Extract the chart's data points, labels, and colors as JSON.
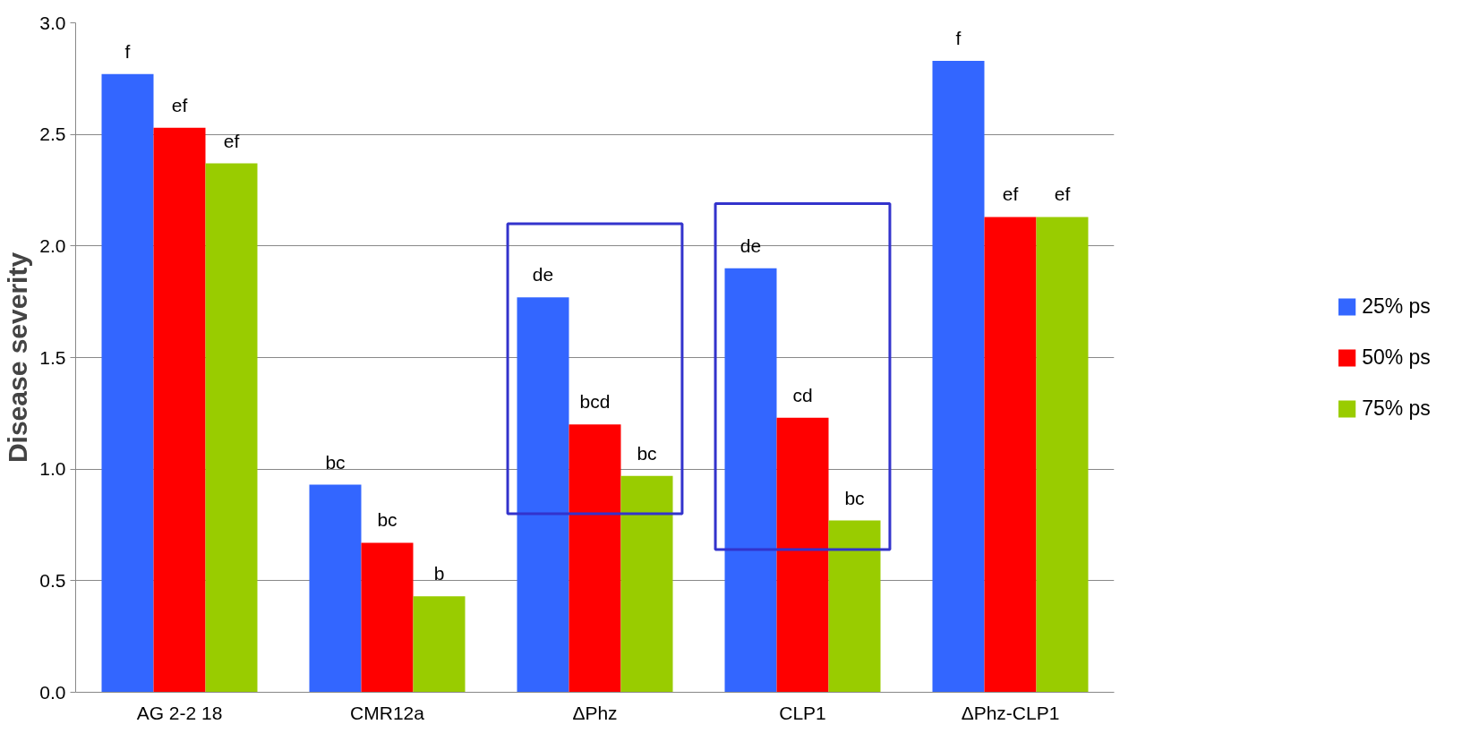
{
  "chart_data": {
    "type": "bar",
    "ylabel": "Disease severity",
    "categories": [
      "AG 2-2 18",
      "CMR12a",
      "ΔPhz",
      "CLP1",
      "ΔPhz-CLP1"
    ],
    "series": [
      {
        "name": "25% ps",
        "color": "#3366ff",
        "values": [
          2.77,
          0.93,
          1.77,
          1.9,
          2.83
        ],
        "value_labels": [
          "f",
          "bc",
          "de",
          "de",
          "f"
        ]
      },
      {
        "name": "50% ps",
        "color": "#ff0000",
        "values": [
          2.53,
          0.67,
          1.2,
          1.23,
          2.13
        ],
        "value_labels": [
          "ef",
          "bc",
          "bcd",
          "cd",
          "ef"
        ]
      },
      {
        "name": "75% ps",
        "color": "#99cc00",
        "values": [
          2.37,
          0.43,
          0.97,
          0.77,
          2.13
        ],
        "value_labels": [
          "ef",
          "b",
          "bc",
          "bc",
          "ef"
        ]
      }
    ],
    "ylim": [
      0,
      3
    ],
    "yticks": [
      {
        "value": 0,
        "label": "0.0"
      },
      {
        "value": 0.5,
        "label": "0.5"
      },
      {
        "value": 1,
        "label": "1.0"
      },
      {
        "value": 1.5,
        "label": "1.5"
      },
      {
        "value": 2,
        "label": "2.0"
      },
      {
        "value": 2.5,
        "label": "2.5"
      },
      {
        "value": 3,
        "label": "3.0"
      }
    ],
    "grid": "y",
    "legend": "right"
  }
}
